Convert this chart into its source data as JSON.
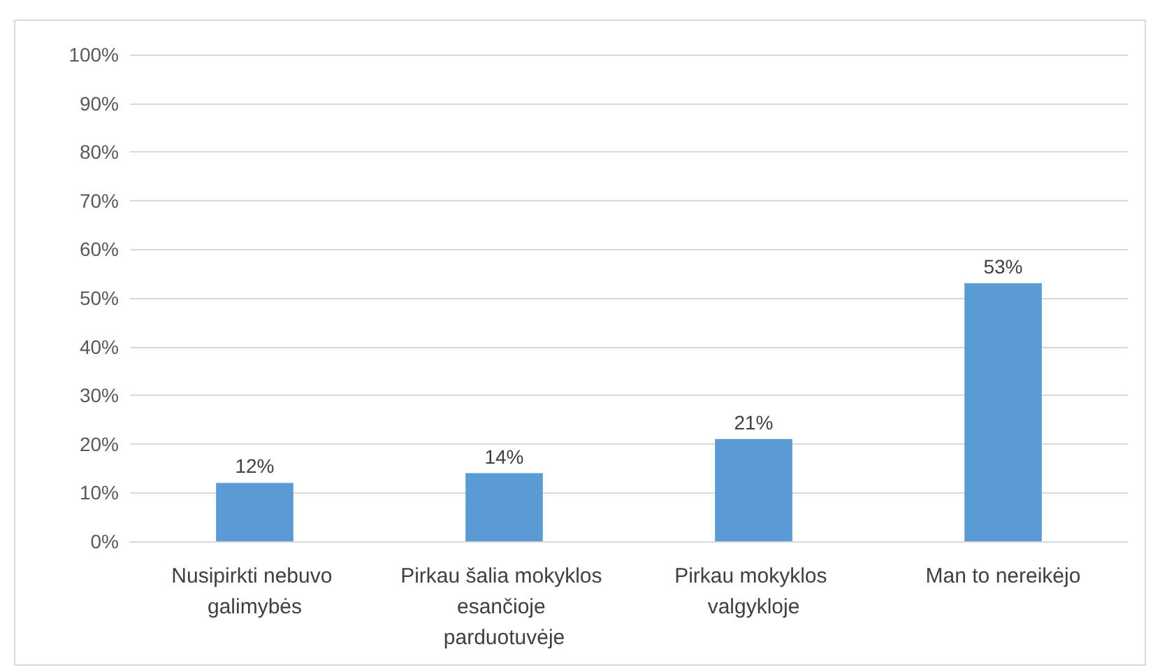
{
  "chart_data": {
    "type": "bar",
    "categories": [
      "Nusipirkti nebuvo galimybės",
      "Pirkau šalia mokyklos esančioje parduotuvėje",
      "Pirkau mokyklos valgykloje",
      "Man to nereikėjo"
    ],
    "values": [
      12,
      14,
      21,
      53
    ],
    "color": "#5b9bd5",
    "value_labels": [
      "12%",
      "14%",
      "21%",
      "53%"
    ],
    "ylim": [
      0,
      100
    ],
    "yticks": [
      {
        "value": 0,
        "label": "0%"
      },
      {
        "value": 10,
        "label": "10%"
      },
      {
        "value": 20,
        "label": "20%"
      },
      {
        "value": 30,
        "label": "30%"
      },
      {
        "value": 40,
        "label": "40%"
      },
      {
        "value": 50,
        "label": "50%"
      },
      {
        "value": 60,
        "label": "60%"
      },
      {
        "value": 70,
        "label": "70%"
      },
      {
        "value": 80,
        "label": "80%"
      },
      {
        "value": 90,
        "label": "90%"
      },
      {
        "value": 100,
        "label": "100%"
      }
    ],
    "grid": "y"
  }
}
